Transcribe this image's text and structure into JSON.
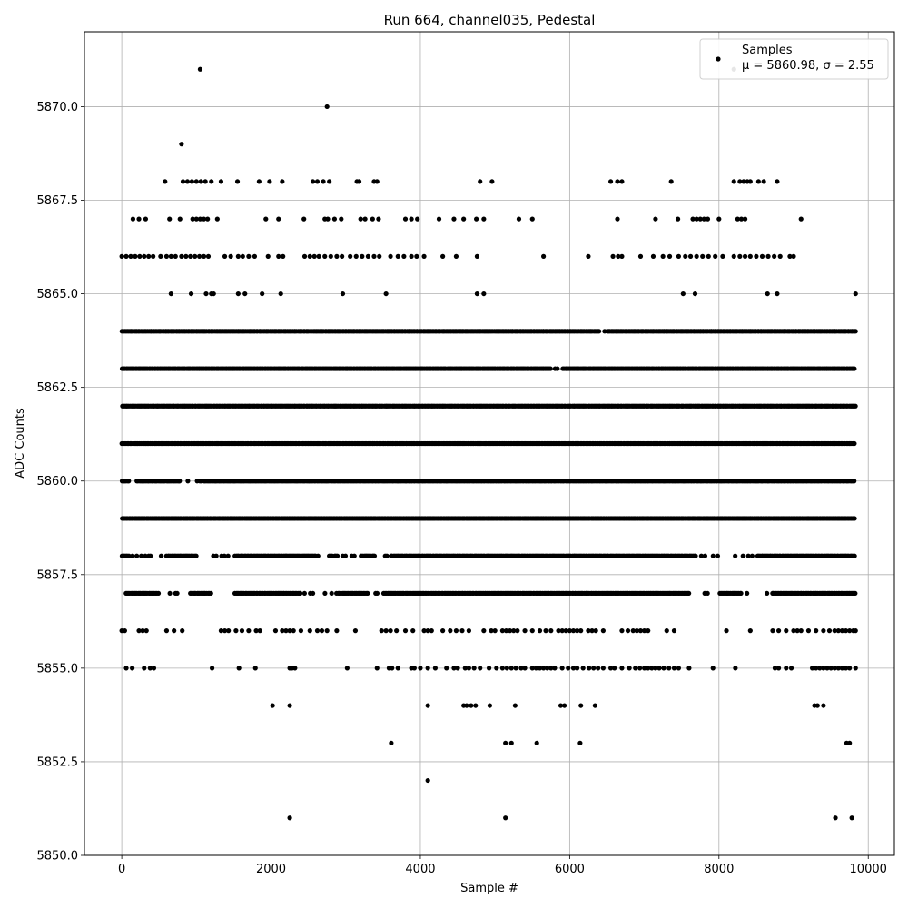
{
  "chart_data": {
    "type": "scatter",
    "title": "Run 664, channel035, Pedestal",
    "xlabel": "Sample #",
    "ylabel": "ADC Counts",
    "xlim": [
      -500,
      10350
    ],
    "ylim": [
      5850,
      5872
    ],
    "xticks": [
      0,
      2000,
      4000,
      6000,
      8000,
      10000
    ],
    "yticks": [
      5850.0,
      5852.5,
      5855.0,
      5857.5,
      5860.0,
      5862.5,
      5865.0,
      5867.5,
      5870.0
    ],
    "xtick_labels": [
      "0",
      "2000",
      "4000",
      "6000",
      "8000",
      "10000"
    ],
    "ytick_labels": [
      "5850.0",
      "5852.5",
      "5855.0",
      "5857.5",
      "5860.0",
      "5862.5",
      "5865.0",
      "5867.5",
      "5870.0"
    ],
    "grid": true,
    "legend": {
      "placement": "top-right",
      "label": "Samples",
      "stats": "μ = 5860.98, σ = 2.55"
    },
    "series": [
      {
        "name": "Samples",
        "color": "#000000",
        "x_range": [
          0,
          9830
        ],
        "levels": [
          {
            "y": 5871,
            "x": [
              1050,
              8200
            ]
          },
          {
            "y": 5870,
            "x": [
              2750
            ]
          },
          {
            "y": 5869,
            "x": [
              800
            ]
          },
          {
            "y": 5868,
            "x": [
              580,
              820,
              880,
              940,
              1000,
              1060,
              1120,
              1200,
              1330,
              1550,
              1840,
              1980,
              2150,
              2560,
              2620,
              2700,
              2780,
              3150,
              3180,
              3380,
              3420,
              4800,
              4960,
              6550,
              6640,
              6700,
              7360,
              8200,
              8280,
              8330,
              8380,
              8420,
              8530,
              8600,
              8780
            ]
          },
          {
            "y": 5867,
            "x": [
              150,
              230,
              320,
              640,
              780,
              950,
              1000,
              1050,
              1100,
              1150,
              1280,
              1930,
              2100,
              2440,
              2720,
              2760,
              2850,
              2940,
              3200,
              3260,
              3360,
              3440,
              3800,
              3880,
              3960,
              4250,
              4450,
              4580,
              4750,
              4850,
              5320,
              5500,
              6640,
              7150,
              7450,
              7650,
              7700,
              7750,
              7800,
              7850,
              8000,
              8250,
              8300,
              8350,
              9100
            ]
          },
          {
            "y": 5866,
            "x": [
              0,
              60,
              120,
              180,
              240,
              300,
              360,
              420,
              520,
              600,
              660,
              720,
              800,
              860,
              920,
              980,
              1040,
              1100,
              1160,
              1380,
              1460,
              1560,
              1620,
              1700,
              1780,
              1960,
              2100,
              2160,
              2450,
              2520,
              2580,
              2640,
              2720,
              2800,
              2880,
              2950,
              3060,
              3140,
              3220,
              3300,
              3380,
              3450,
              3600,
              3700,
              3780,
              3880,
              3950,
              4050,
              4300,
              4480,
              4760,
              5650,
              6250,
              6580,
              6650,
              6700,
              6950,
              7120,
              7250,
              7340,
              7460,
              7550,
              7620,
              7700,
              7780,
              7860,
              7950,
              8050,
              8200,
              8280,
              8350,
              8420,
              8500,
              8580,
              8660,
              8740,
              8820,
              8950,
              9000
            ]
          },
          {
            "y": 5865,
            "x": [
              660,
              930,
              1130,
              1200,
              1230,
              1560,
              1650,
              1880,
              2130,
              2960,
              3540,
              4760,
              4850,
              7520,
              7680,
              8650,
              8780,
              9830
            ]
          },
          {
            "y": 5864,
            "dense": true,
            "x_range": [
              0,
              9830
            ],
            "gaps": [
              [
                6400,
                6500
              ]
            ]
          },
          {
            "y": 5863,
            "dense": true,
            "x_range": [
              0,
              9830
            ],
            "gaps": [
              [
                5750,
                5900
              ]
            ]
          },
          {
            "y": 5862,
            "dense": true,
            "x_range": [
              0,
              9830
            ],
            "gaps": []
          },
          {
            "y": 5861,
            "dense": true,
            "x_range": [
              0,
              9830
            ],
            "gaps": []
          },
          {
            "y": 5860,
            "dense": true,
            "x_range": [
              0,
              9830
            ],
            "gaps": [
              [
                100,
                200
              ],
              [
                800,
                1100
              ]
            ]
          },
          {
            "y": 5859,
            "dense": true,
            "x_range": [
              0,
              9830
            ],
            "gaps": []
          },
          {
            "y": 5858,
            "dense": true,
            "x_range": [
              0,
              9830
            ],
            "gaps": [
              [
                100,
                600
              ],
              [
                1000,
                1500
              ],
              [
                2600,
                3200
              ],
              [
                3400,
                3600
              ],
              [
                7700,
                8500
              ]
            ]
          },
          {
            "y": 5857,
            "dense": true,
            "x_range": [
              50,
              9830
            ],
            "gaps": [
              [
                500,
                900
              ],
              [
                1200,
                1500
              ],
              [
                2400,
                2900
              ],
              [
                3300,
                3500
              ],
              [
                7600,
                8000
              ],
              [
                8300,
                8700
              ]
            ]
          },
          {
            "y": 5856,
            "x": [
              0,
              40,
              230,
              280,
              330,
              600,
              700,
              810,
              1330,
              1380,
              1430,
              1530,
              1610,
              1700,
              1800,
              1850,
              2060,
              2150,
              2200,
              2250,
              2300,
              2400,
              2520,
              2620,
              2680,
              2750,
              2880,
              3130,
              3480,
              3540,
              3600,
              3680,
              3800,
              3900,
              4050,
              4100,
              4150,
              4300,
              4400,
              4480,
              4560,
              4650,
              4850,
              4950,
              5000,
              5100,
              5150,
              5200,
              5250,
              5300,
              5400,
              5500,
              5600,
              5680,
              5750,
              5850,
              5900,
              5950,
              6000,
              6050,
              6100,
              6150,
              6250,
              6300,
              6350,
              6450,
              6700,
              6780,
              6850,
              6900,
              6950,
              7000,
              7050,
              7300,
              7400,
              8100,
              8420,
              8720,
              8800,
              8900,
              9000,
              9050,
              9100,
              9200,
              9300,
              9400,
              9480,
              9550,
              9600,
              9650,
              9700,
              9750,
              9800,
              9830
            ]
          },
          {
            "y": 5855,
            "x": [
              60,
              140,
              300,
              380,
              430,
              1210,
              1570,
              1790,
              2250,
              2280,
              2320,
              3020,
              3420,
              3580,
              3620,
              3700,
              3880,
              3920,
              4000,
              4100,
              4200,
              4350,
              4450,
              4500,
              4600,
              4650,
              4720,
              4800,
              4920,
              5020,
              5100,
              5160,
              5220,
              5280,
              5350,
              5400,
              5500,
              5550,
              5600,
              5650,
              5700,
              5750,
              5800,
              5900,
              5980,
              6050,
              6100,
              6180,
              6260,
              6320,
              6380,
              6450,
              6550,
              6600,
              6700,
              6800,
              6880,
              6940,
              7000,
              7050,
              7100,
              7150,
              7200,
              7260,
              7330,
              7400,
              7460,
              7600,
              7920,
              8220,
              8750,
              8800,
              8900,
              8970,
              9250,
              9300,
              9350,
              9400,
              9450,
              9500,
              9550,
              9600,
              9650,
              9700,
              9750,
              9830
            ]
          },
          {
            "y": 5854,
            "x": [
              2020,
              2250,
              4100,
              4580,
              4620,
              4680,
              4740,
              4930,
              5270,
              5880,
              5930,
              6150,
              6340,
              9280,
              9320,
              9400
            ]
          },
          {
            "y": 5853,
            "x": [
              3610,
              5140,
              5220,
              5560,
              6140,
              9710,
              9750
            ]
          },
          {
            "y": 5852,
            "x": [
              4100
            ]
          },
          {
            "y": 5851,
            "x": [
              2250,
              5140,
              9560,
              9780
            ]
          }
        ]
      }
    ]
  }
}
